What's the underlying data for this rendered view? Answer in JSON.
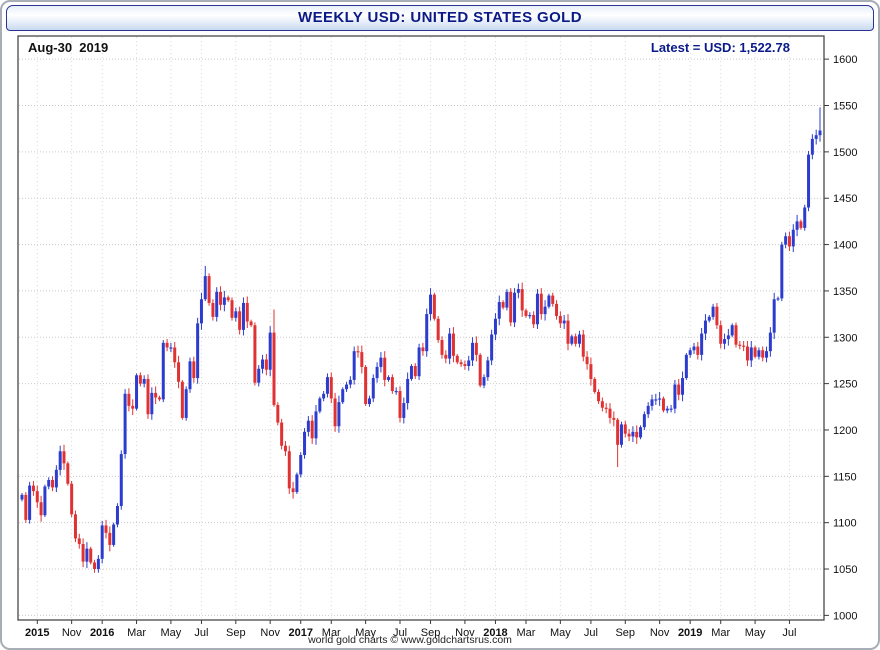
{
  "window": {
    "title": "WEEKLY USD: UNITED STATES GOLD"
  },
  "overlay": {
    "date_label": "Aug-30  2019",
    "latest_label": "Latest = USD: 1,522.78"
  },
  "footer": {
    "credit": "world gold charts © www.goldchartsrus.com"
  },
  "colors": {
    "up": "#2b3cce",
    "down": "#e03232",
    "grid": "#c9c9c9",
    "vgrid": "#d8d8d8",
    "frame": "#3a3a3a",
    "axis_text": "#111111",
    "title_text": "#0b1a86"
  },
  "y_axis": {
    "min": 1000,
    "max": 1600,
    "step": 50,
    "labels": [
      1000,
      1050,
      1100,
      1150,
      1200,
      1250,
      1300,
      1350,
      1400,
      1450,
      1500,
      1550,
      1600
    ]
  },
  "x_axis": {
    "ticks": [
      {
        "label": "2015",
        "week": 4,
        "bold": true
      },
      {
        "label": "Nov",
        "week": 13,
        "bold": false
      },
      {
        "label": "2016",
        "week": 21,
        "bold": true
      },
      {
        "label": "Mar",
        "week": 30,
        "bold": false
      },
      {
        "label": "May",
        "week": 39,
        "bold": false
      },
      {
        "label": "Jul",
        "week": 47,
        "bold": false
      },
      {
        "label": "Sep",
        "week": 56,
        "bold": false
      },
      {
        "label": "Nov",
        "week": 65,
        "bold": false
      },
      {
        "label": "2017",
        "week": 73,
        "bold": true
      },
      {
        "label": "Mar",
        "week": 81,
        "bold": false
      },
      {
        "label": "May",
        "week": 90,
        "bold": false
      },
      {
        "label": "Jul",
        "week": 99,
        "bold": false
      },
      {
        "label": "Sep",
        "week": 107,
        "bold": false
      },
      {
        "label": "Nov",
        "week": 116,
        "bold": false
      },
      {
        "label": "2018",
        "week": 124,
        "bold": true
      },
      {
        "label": "Mar",
        "week": 132,
        "bold": false
      },
      {
        "label": "May",
        "week": 141,
        "bold": false
      },
      {
        "label": "Jul",
        "week": 149,
        "bold": false
      },
      {
        "label": "Sep",
        "week": 158,
        "bold": false
      },
      {
        "label": "Nov",
        "week": 167,
        "bold": false
      },
      {
        "label": "2019",
        "week": 175,
        "bold": true
      },
      {
        "label": "Mar",
        "week": 183,
        "bold": false
      },
      {
        "label": "May",
        "week": 192,
        "bold": false
      },
      {
        "label": "Jul",
        "week": 201,
        "bold": false
      }
    ]
  },
  "chart_data": {
    "type": "candlestick",
    "interval": "weekly",
    "title": "WEEKLY USD: UNITED STATES GOLD",
    "start": "2015-08",
    "end": "2019-08-30",
    "latest_close": 1522.78,
    "ylim": [
      995,
      1625
    ],
    "closes": [
      1130,
      1103,
      1140,
      1134,
      1122,
      1108,
      1139,
      1146,
      1138,
      1157,
      1177,
      1164,
      1142,
      1109,
      1083,
      1077,
      1058,
      1072,
      1057,
      1050,
      1061,
      1097,
      1089,
      1076,
      1098,
      1118,
      1174,
      1239,
      1226,
      1223,
      1259,
      1250,
      1255,
      1217,
      1240,
      1235,
      1233,
      1294,
      1289,
      1289,
      1273,
      1252,
      1213,
      1244,
      1274,
      1256,
      1315,
      1341,
      1366,
      1337,
      1322,
      1349,
      1335,
      1343,
      1340,
      1321,
      1328,
      1308,
      1337,
      1317,
      1313,
      1251,
      1266,
      1276,
      1265,
      1305,
      1227,
      1208,
      1183,
      1177,
      1137,
      1133,
      1152,
      1173,
      1198,
      1210,
      1191,
      1220,
      1234,
      1239,
      1257,
      1234,
      1204,
      1230,
      1244,
      1249,
      1254,
      1285,
      1284,
      1268,
      1228,
      1234,
      1256,
      1268,
      1278,
      1254,
      1257,
      1242,
      1242,
      1213,
      1229,
      1255,
      1269,
      1258,
      1289,
      1285,
      1325,
      1346,
      1320,
      1297,
      1281,
      1277,
      1304,
      1280,
      1273,
      1271,
      1269,
      1275,
      1294,
      1281,
      1248,
      1257,
      1275,
      1303,
      1320,
      1338,
      1332,
      1349,
      1316,
      1348,
      1352,
      1329,
      1323,
      1324,
      1314,
      1347,
      1325,
      1333,
      1345,
      1336,
      1323,
      1315,
      1318,
      1293,
      1301,
      1293,
      1303,
      1279,
      1271,
      1255,
      1241,
      1231,
      1224,
      1223,
      1213,
      1211,
      1184,
      1206,
      1196,
      1193,
      1198,
      1192,
      1203,
      1217,
      1226,
      1233,
      1233,
      1234,
      1221,
      1223,
      1223,
      1249,
      1238,
      1256,
      1281,
      1286,
      1290,
      1281,
      1304,
      1318,
      1322,
      1333,
      1313,
      1293,
      1298,
      1302,
      1313,
      1292,
      1291,
      1290,
      1275,
      1289,
      1279,
      1286,
      1278,
      1285,
      1305,
      1341,
      1342,
      1400,
      1409,
      1398,
      1416,
      1425,
      1418,
      1440,
      1497,
      1514,
      1518,
      1523
    ],
    "wick_overrides": {
      "high": {
        "48": 1377,
        "66": 1330,
        "209": 1548
      },
      "low": {
        "19": 1046,
        "156": 1160
      }
    }
  }
}
